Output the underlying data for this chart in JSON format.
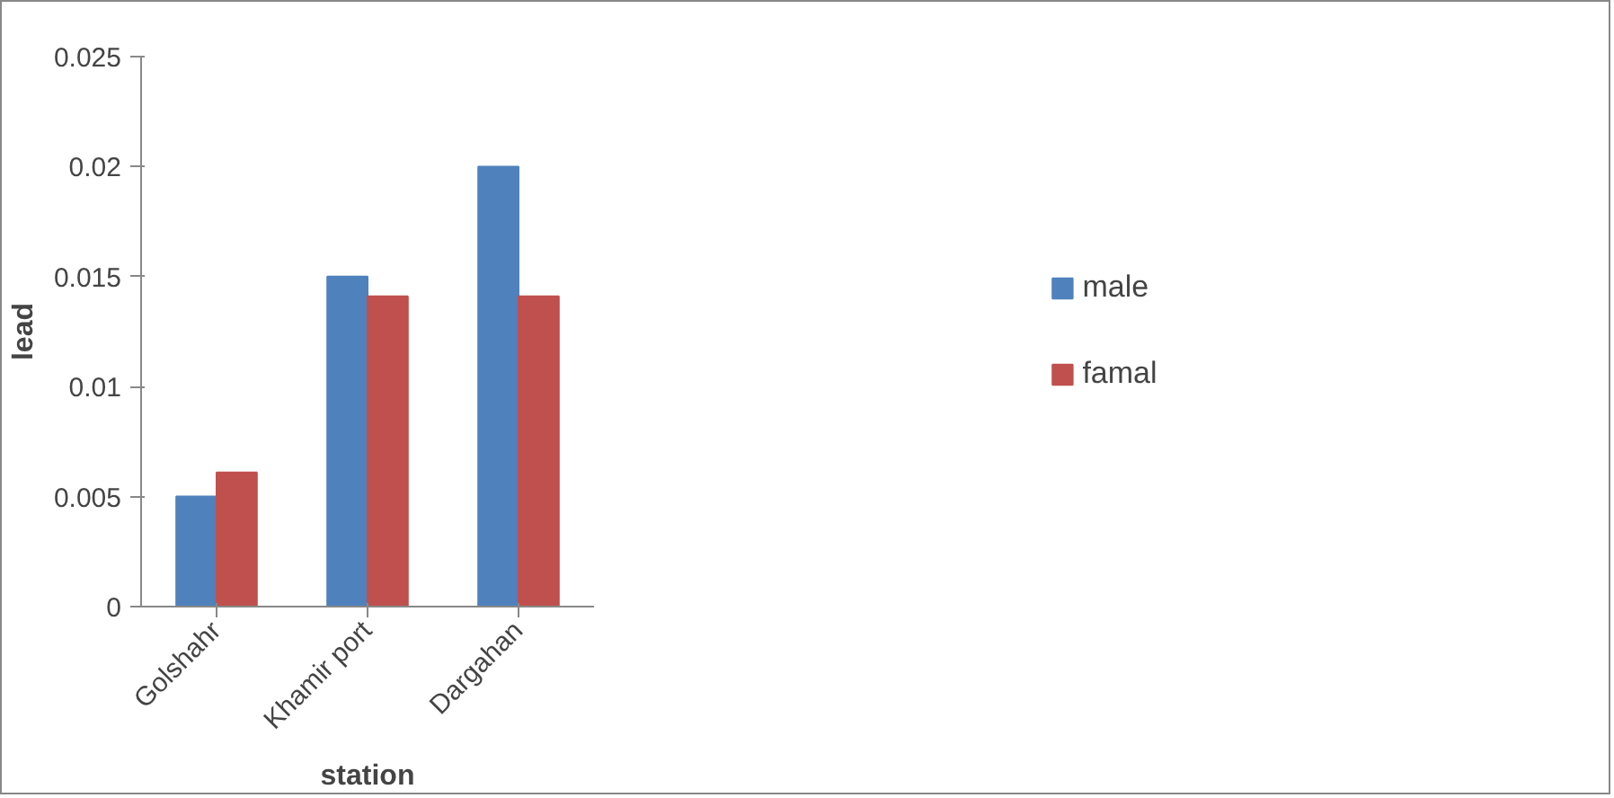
{
  "chart_data": {
    "type": "bar",
    "xlabel": "station",
    "ylabel": "lead",
    "categories": [
      "Golshahr",
      "Khamir port",
      "Dargahan"
    ],
    "series": [
      {
        "name": "male",
        "color": "#4f81bd",
        "values": [
          0.005,
          0.015,
          0.02
        ]
      },
      {
        "name": "famal",
        "color": "#c0504d",
        "values": [
          0.0061,
          0.0141,
          0.0141
        ]
      }
    ],
    "ylim": [
      0,
      0.025
    ],
    "yticks": [
      0,
      0.005,
      0.01,
      0.015,
      0.02,
      0.025
    ],
    "grid": false,
    "legend": "right"
  }
}
